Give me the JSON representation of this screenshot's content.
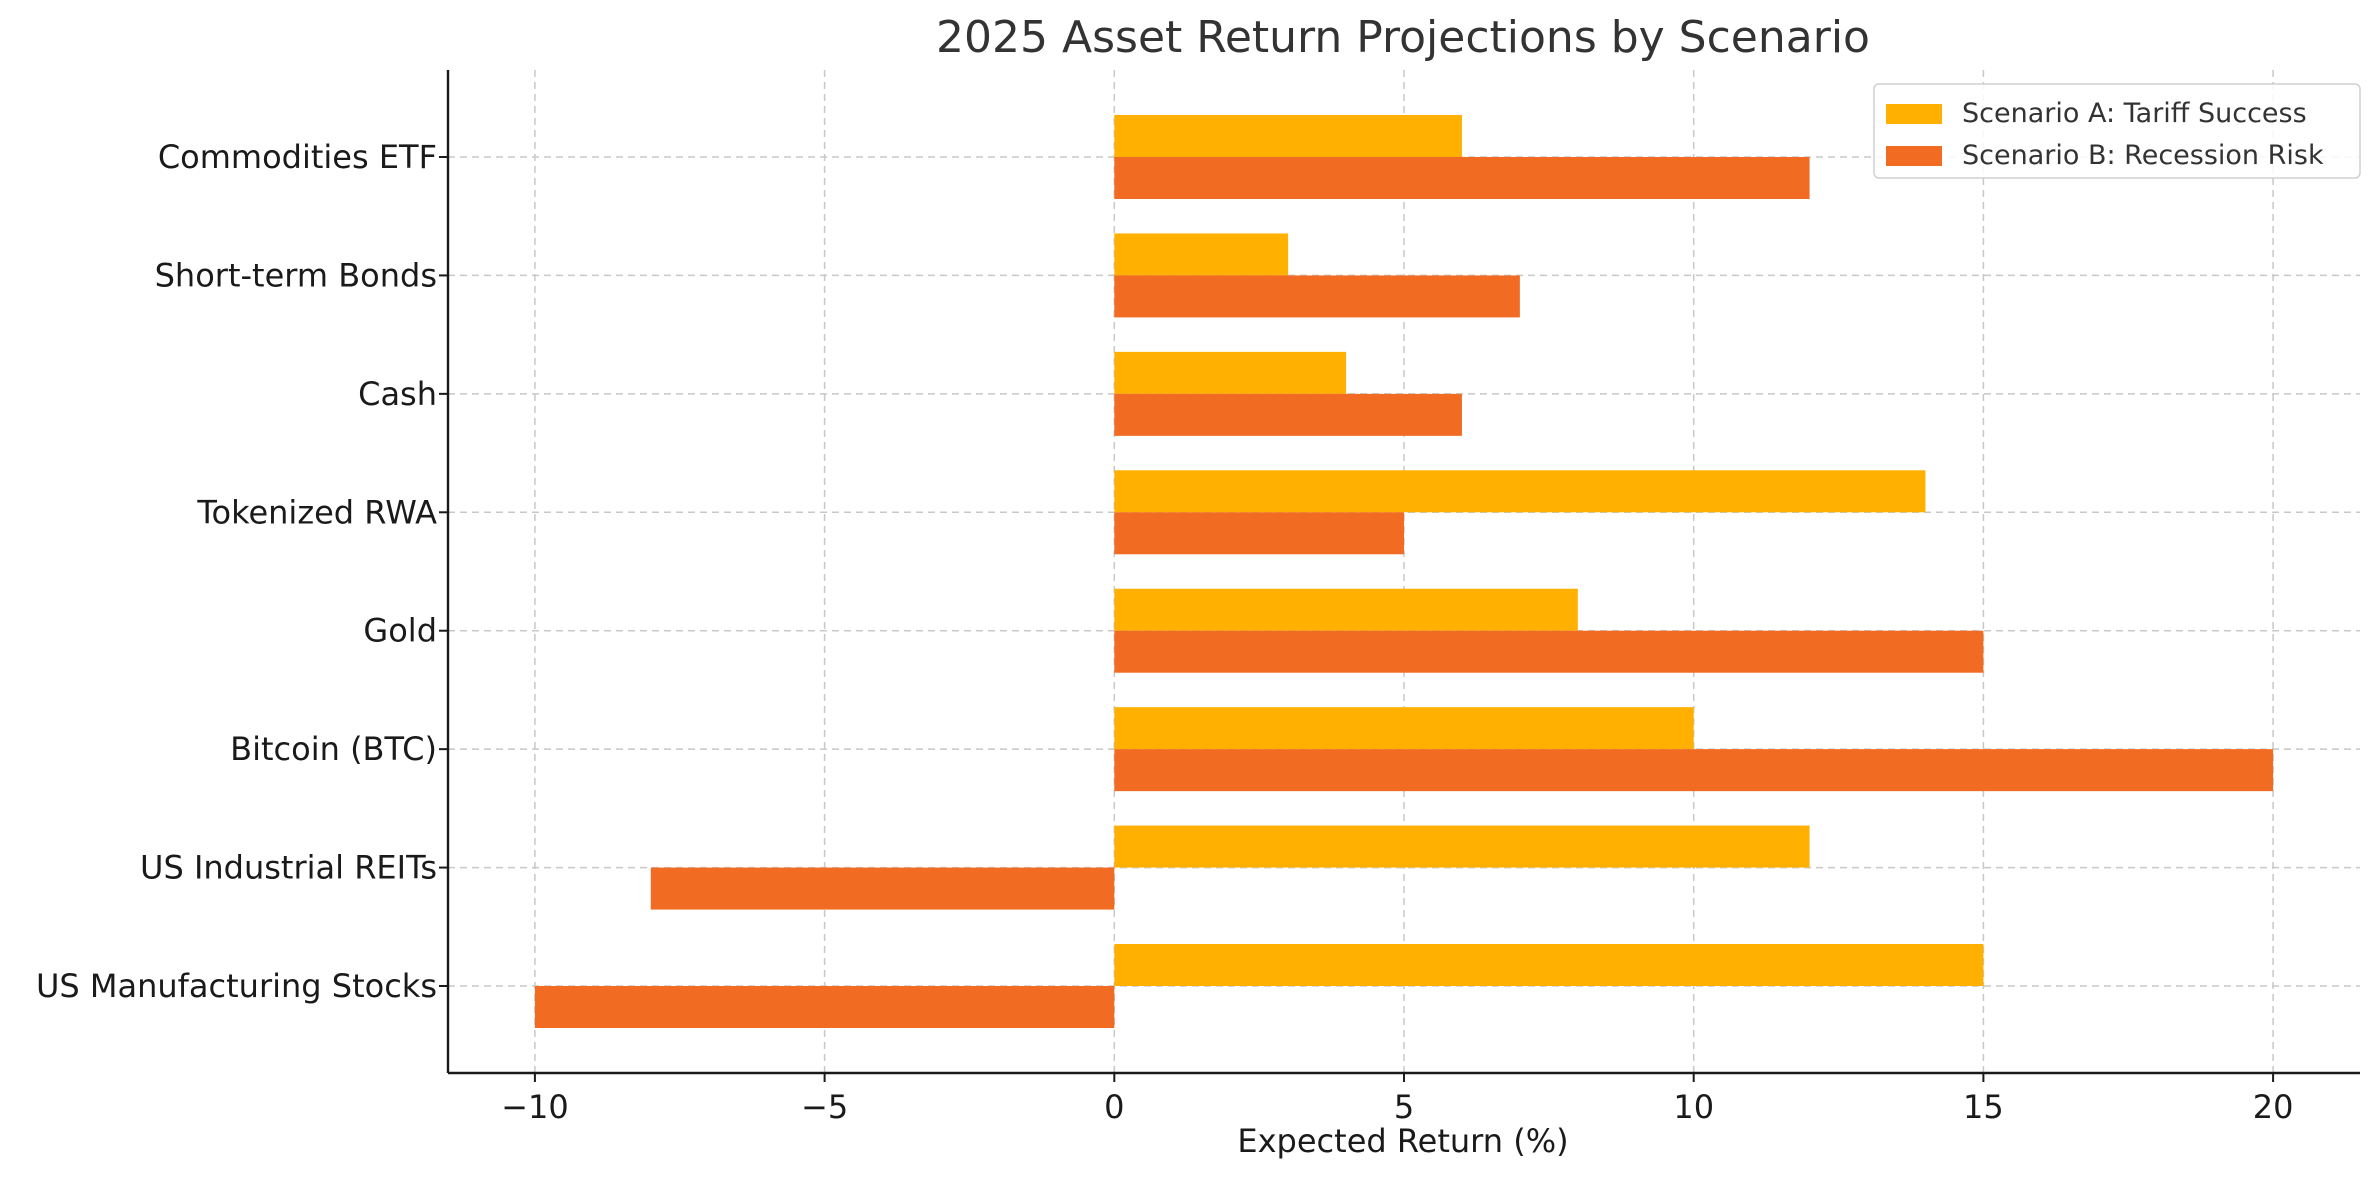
{
  "chart_data": {
    "type": "bar",
    "orientation": "horizontal",
    "title": "2025 Asset Return Projections by Scenario",
    "xlabel": "Expected Return (%)",
    "ylabel": "",
    "xlim": [
      -11.5,
      21.5
    ],
    "xticks": [
      -10,
      -5,
      0,
      5,
      10,
      15,
      20
    ],
    "xtick_labels": [
      "−10",
      "−5",
      "0",
      "5",
      "10",
      "15",
      "20"
    ],
    "grid": true,
    "legend_position": "top-right",
    "categories": [
      "US Manufacturing Stocks",
      "US Industrial REITs",
      "Bitcoin (BTC)",
      "Gold",
      "Tokenized RWA",
      "Cash",
      "Short-term Bonds",
      "Commodities ETF"
    ],
    "series": [
      {
        "name": "Scenario A: Tariff Success",
        "color": "#FFB000",
        "values": [
          15,
          12,
          10,
          8,
          14,
          4,
          3,
          6
        ]
      },
      {
        "name": "Scenario B: Recession Risk",
        "color": "#F26B22",
        "values": [
          -10,
          -8,
          20,
          15,
          5,
          6,
          7,
          12
        ]
      }
    ]
  }
}
